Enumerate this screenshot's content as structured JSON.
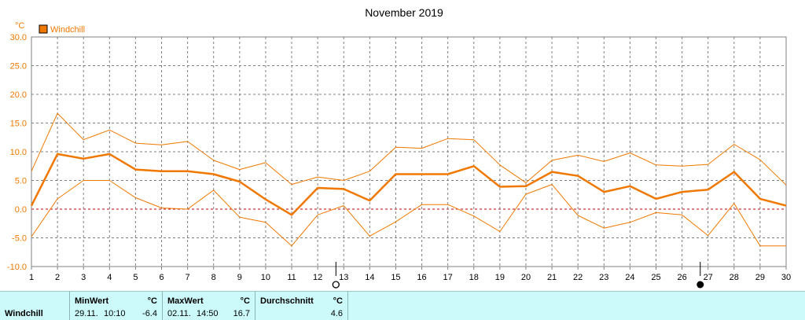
{
  "chart_data": {
    "type": "line",
    "title": "November 2019",
    "unit": "°C",
    "legend": "Windchill",
    "legend_color": "#f07800",
    "x": [
      1,
      2,
      3,
      4,
      5,
      6,
      7,
      8,
      9,
      10,
      11,
      12,
      13,
      14,
      15,
      16,
      17,
      18,
      19,
      20,
      21,
      22,
      23,
      24,
      25,
      26,
      27,
      28,
      29,
      30
    ],
    "xlim": [
      1,
      30
    ],
    "ylim": [
      -10,
      30
    ],
    "yticks": [
      "30.0",
      "25.0",
      "20.0",
      "15.0",
      "10.0",
      "5.0",
      "0.0",
      "-5.0",
      "-10.0"
    ],
    "series": [
      {
        "name": "Windchill",
        "values": [
          0.6,
          9.6,
          8.8,
          9.6,
          6.9,
          6.6,
          6.6,
          6.1,
          4.8,
          1.7,
          -1.0,
          3.7,
          3.5,
          1.5,
          6.1,
          6.1,
          6.1,
          7.5,
          3.9,
          4.0,
          6.5,
          5.8,
          3.0,
          4.0,
          1.8,
          3.0,
          3.4,
          6.5,
          1.8,
          0.6
        ]
      },
      {
        "values": [
          6.6,
          16.7,
          12.1,
          13.8,
          11.5,
          11.2,
          11.8,
          8.5,
          6.9,
          8.1,
          4.3,
          5.6,
          5.0,
          6.6,
          10.8,
          10.6,
          12.3,
          12.1,
          7.7,
          4.6,
          8.5,
          9.4,
          8.3,
          9.8,
          7.7,
          7.5,
          7.8,
          11.3,
          8.6,
          4.2
        ]
      },
      {
        "values": [
          -4.8,
          1.8,
          5.0,
          5.0,
          2.0,
          0.2,
          0.0,
          3.3,
          -1.4,
          -2.3,
          -6.4,
          -1.0,
          0.6,
          -4.7,
          -2.2,
          0.8,
          0.8,
          -1.2,
          -3.9,
          2.6,
          4.3,
          -1.1,
          -3.3,
          -2.3,
          -0.6,
          -1.0,
          -4.6,
          1.0,
          -6.4,
          -6.4
        ]
      }
    ],
    "moon_markers": [
      {
        "day": 12.7,
        "phase": "first-quarter"
      },
      {
        "day": 26.7,
        "phase": "new"
      }
    ],
    "grid": true
  },
  "footer": {
    "label": "Windchill",
    "min_header": "MinWert",
    "min_unit": "°C",
    "min_date": "29.11.",
    "min_time": "10:10",
    "min_value": "-6.4",
    "max_header": "MaxWert",
    "max_unit": "°C",
    "max_date": "02.11.",
    "max_time": "14:50",
    "max_value": "16.7",
    "avg_header": "Durchschnitt",
    "avg_unit": "°C",
    "avg_value": "4.6"
  }
}
